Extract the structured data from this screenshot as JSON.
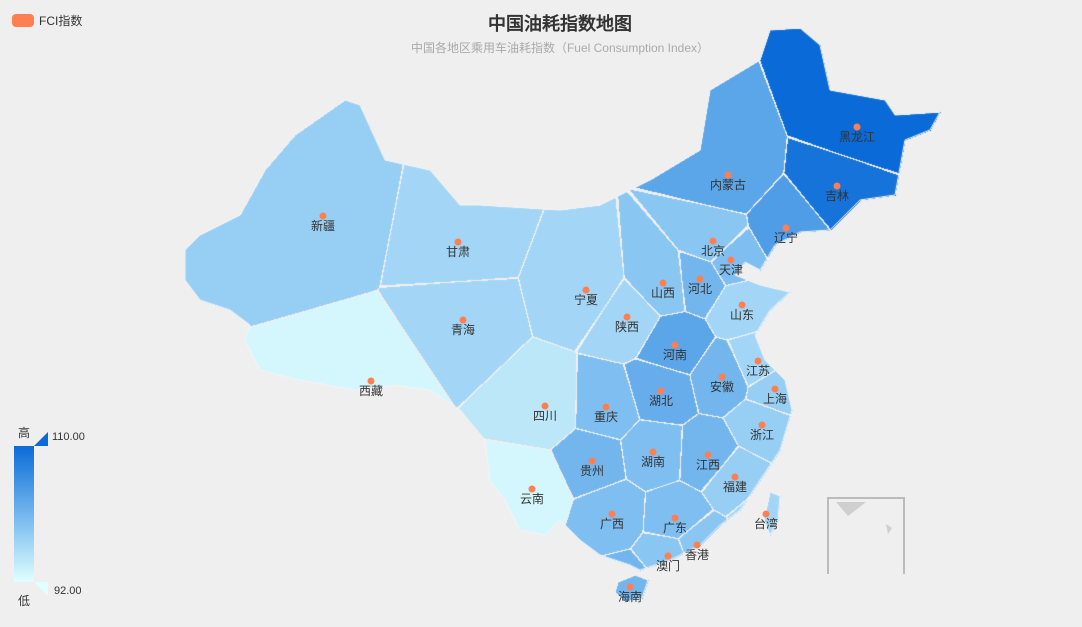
{
  "title": "中国油耗指数地图",
  "subtitle": "中国各地区乘用车油耗指数（Fuel Consumption Index）",
  "legend": {
    "label": "FCI指数",
    "color": "#ff7f50"
  },
  "visual_map": {
    "max_label": "110.00",
    "min_label": "92.00",
    "high": "高",
    "low": "低",
    "min": 92,
    "max": 110,
    "color_low": "#e0ffff",
    "color_high": "#0a6bd8"
  },
  "chart_data": {
    "type": "map",
    "series_name": "FCI指数",
    "regions": [
      {
        "name": "黑龙江",
        "value": 110
      },
      {
        "name": "吉林",
        "value": 109
      },
      {
        "name": "辽宁",
        "value": 104
      },
      {
        "name": "内蒙古",
        "value": 103
      },
      {
        "name": "新疆",
        "value": 98
      },
      {
        "name": "西藏",
        "value": 93
      },
      {
        "name": "青海",
        "value": 97
      },
      {
        "name": "甘肃",
        "value": 97
      },
      {
        "name": "宁夏",
        "value": 97
      },
      {
        "name": "陕西",
        "value": 97
      },
      {
        "name": "山西",
        "value": 99
      },
      {
        "name": "河北",
        "value": 101
      },
      {
        "name": "北京",
        "value": 99
      },
      {
        "name": "天津",
        "value": 100
      },
      {
        "name": "山东",
        "value": 97
      },
      {
        "name": "河南",
        "value": 103
      },
      {
        "name": "湖北",
        "value": 102
      },
      {
        "name": "安徽",
        "value": 101
      },
      {
        "name": "江苏",
        "value": 97
      },
      {
        "name": "上海",
        "value": 98
      },
      {
        "name": "浙江",
        "value": 98
      },
      {
        "name": "四川",
        "value": 95
      },
      {
        "name": "重庆",
        "value": 100
      },
      {
        "name": "贵州",
        "value": 101
      },
      {
        "name": "云南",
        "value": 93
      },
      {
        "name": "湖南",
        "value": 100
      },
      {
        "name": "江西",
        "value": 101
      },
      {
        "name": "福建",
        "value": 98
      },
      {
        "name": "广西",
        "value": 100
      },
      {
        "name": "广东",
        "value": 100
      },
      {
        "name": "海南",
        "value": 101
      },
      {
        "name": "台湾",
        "value": 97
      },
      {
        "name": "香港",
        "value": 99
      },
      {
        "name": "澳门",
        "value": 99
      }
    ]
  }
}
